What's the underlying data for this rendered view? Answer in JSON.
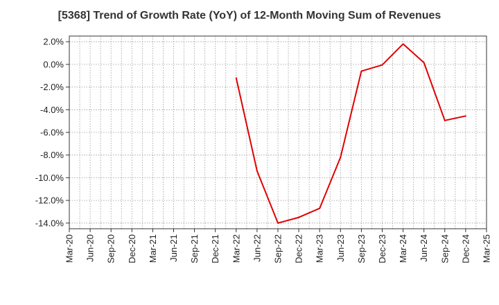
{
  "chart_data": {
    "type": "line",
    "title": "[5368]  Trend of Growth Rate (YoY) of 12-Month Moving Sum of Revenues",
    "xlabel": "",
    "ylabel": "",
    "x_ticks": [
      "Mar-20",
      "Jun-20",
      "Sep-20",
      "Dec-20",
      "Mar-21",
      "Jun-21",
      "Sep-21",
      "Dec-21",
      "Mar-22",
      "Jun-22",
      "Sep-22",
      "Dec-22",
      "Mar-23",
      "Jun-23",
      "Sep-23",
      "Dec-23",
      "Mar-24",
      "Jun-24",
      "Sep-24",
      "Dec-24",
      "Mar-25"
    ],
    "y_ticks": [
      "2.0%",
      "0.0%",
      "-2.0%",
      "-4.0%",
      "-6.0%",
      "-8.0%",
      "-10.0%",
      "-12.0%",
      "-14.0%"
    ],
    "ylim": [
      -14.5,
      2.5
    ],
    "grid": true,
    "series": [
      {
        "color": "#e00000",
        "x": [
          "Mar-22",
          "Jun-22",
          "Sep-22",
          "Dec-22",
          "Mar-23",
          "Jun-23",
          "Sep-23",
          "Dec-23",
          "Mar-24",
          "Jun-24",
          "Sep-24",
          "Dec-24"
        ],
        "values": [
          -1.2,
          -9.4,
          -14.0,
          -13.5,
          -12.7,
          -8.2,
          -0.6,
          -0.05,
          1.8,
          0.15,
          -4.95,
          -4.55
        ]
      }
    ]
  }
}
